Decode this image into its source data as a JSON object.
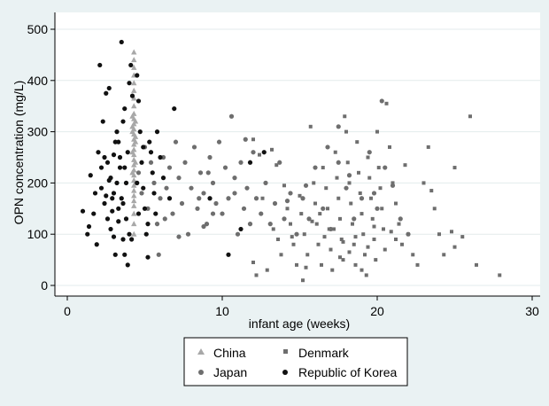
{
  "chart_data": {
    "type": "scatter",
    "xlabel": "infant age (weeks)",
    "ylabel": "OPN concentration (mg/L)",
    "xlim": [
      0,
      30
    ],
    "ylim": [
      0,
      500
    ],
    "x_ticks": [
      "0",
      "10",
      "20",
      "30"
    ],
    "y_ticks": [
      "0",
      "100",
      "200",
      "300",
      "400",
      "500"
    ],
    "grid": "horizontal",
    "legend_position": "bottom",
    "colors": {
      "background": "#eaf2f3",
      "plot_area": "#ffffff",
      "China": "#a8a8a8",
      "Denmark": "#6e6e6e",
      "Japan": "#6e6e6e",
      "Republic of Korea": "#111111"
    },
    "series": [
      {
        "name": "China",
        "marker": "triangle",
        "points": [
          [
            4.3,
            455
          ],
          [
            4.3,
            440
          ],
          [
            4.3,
            425
          ],
          [
            4.3,
            410
          ],
          [
            4.3,
            395
          ],
          [
            4.3,
            380
          ],
          [
            4.3,
            365
          ],
          [
            4.3,
            350
          ],
          [
            4.3,
            335
          ],
          [
            4.3,
            325
          ],
          [
            4.3,
            315
          ],
          [
            4.3,
            305
          ],
          [
            4.3,
            295
          ],
          [
            4.3,
            285
          ],
          [
            4.3,
            275
          ],
          [
            4.3,
            265
          ],
          [
            4.3,
            255
          ],
          [
            4.3,
            245
          ],
          [
            4.3,
            235
          ],
          [
            4.3,
            225
          ],
          [
            4.3,
            215
          ],
          [
            4.3,
            205
          ],
          [
            4.3,
            195
          ],
          [
            4.3,
            185
          ],
          [
            4.3,
            175
          ],
          [
            4.3,
            165
          ],
          [
            4.3,
            155
          ],
          [
            4.3,
            140
          ],
          [
            4.3,
            120
          ],
          [
            4.3,
            100
          ],
          [
            4.2,
            300
          ],
          [
            4.4,
            280
          ],
          [
            4.2,
            260
          ],
          [
            4.4,
            240
          ],
          [
            4.2,
            220
          ],
          [
            4.4,
            200
          ],
          [
            4.2,
            330
          ],
          [
            4.4,
            320
          ],
          [
            4.2,
            310
          ],
          [
            4.4,
            290
          ]
        ]
      },
      {
        "name": "Denmark",
        "marker": "square",
        "points": [
          [
            12.0,
            285
          ],
          [
            12.0,
            45
          ],
          [
            12.2,
            20
          ],
          [
            12.4,
            255
          ],
          [
            12.9,
            30
          ],
          [
            12.6,
            170
          ],
          [
            13.2,
            265
          ],
          [
            13.5,
            235
          ],
          [
            13.3,
            110
          ],
          [
            13.6,
            90
          ],
          [
            13.8,
            60
          ],
          [
            14.0,
            195
          ],
          [
            14.2,
            150
          ],
          [
            14.4,
            120
          ],
          [
            14.6,
            80
          ],
          [
            14.8,
            40
          ],
          [
            15.0,
            175
          ],
          [
            15.1,
            140
          ],
          [
            15.3,
            100
          ],
          [
            15.2,
            10
          ],
          [
            15.5,
            60
          ],
          [
            15.7,
            310
          ],
          [
            15.9,
            200
          ],
          [
            16.0,
            160
          ],
          [
            16.1,
            120
          ],
          [
            16.2,
            80
          ],
          [
            16.4,
            40
          ],
          [
            16.5,
            230
          ],
          [
            16.7,
            190
          ],
          [
            16.8,
            150
          ],
          [
            16.9,
            110
          ],
          [
            17.0,
            70
          ],
          [
            17.1,
            30
          ],
          [
            17.3,
            260
          ],
          [
            17.4,
            210
          ],
          [
            17.5,
            170
          ],
          [
            17.6,
            130
          ],
          [
            17.7,
            90
          ],
          [
            17.8,
            50
          ],
          [
            17.9,
            330
          ],
          [
            18.0,
            300
          ],
          [
            18.1,
            240
          ],
          [
            18.2,
            200
          ],
          [
            18.3,
            160
          ],
          [
            18.4,
            120
          ],
          [
            18.5,
            80
          ],
          [
            18.6,
            40
          ],
          [
            18.7,
            280
          ],
          [
            18.8,
            220
          ],
          [
            18.9,
            180
          ],
          [
            19.0,
            140
          ],
          [
            19.1,
            100
          ],
          [
            19.2,
            60
          ],
          [
            19.3,
            20
          ],
          [
            19.4,
            250
          ],
          [
            19.5,
            210
          ],
          [
            19.6,
            170
          ],
          [
            19.7,
            130
          ],
          [
            19.8,
            90
          ],
          [
            19.9,
            50
          ],
          [
            20.0,
            300
          ],
          [
            20.1,
            230
          ],
          [
            20.2,
            190
          ],
          [
            20.3,
            150
          ],
          [
            20.4,
            110
          ],
          [
            20.5,
            70
          ],
          [
            20.6,
            355
          ],
          [
            20.8,
            270
          ],
          [
            21.0,
            200
          ],
          [
            21.2,
            160
          ],
          [
            21.4,
            120
          ],
          [
            21.6,
            80
          ],
          [
            21.8,
            235
          ],
          [
            22.0,
            100
          ],
          [
            22.3,
            60
          ],
          [
            22.6,
            40
          ],
          [
            23.0,
            200
          ],
          [
            23.3,
            270
          ],
          [
            23.5,
            185
          ],
          [
            23.7,
            150
          ],
          [
            24.0,
            100
          ],
          [
            24.3,
            60
          ],
          [
            24.8,
            105
          ],
          [
            25.0,
            75
          ],
          [
            25.0,
            230
          ],
          [
            25.5,
            95
          ],
          [
            26.0,
            330
          ],
          [
            26.4,
            40
          ],
          [
            27.9,
            20
          ],
          [
            16.3,
            140
          ],
          [
            17.2,
            110
          ],
          [
            18.6,
            95
          ],
          [
            19.8,
            115
          ],
          [
            20.9,
            105
          ],
          [
            15.8,
            125
          ],
          [
            17.8,
            85
          ],
          [
            19.4,
            75
          ],
          [
            21.2,
            90
          ],
          [
            18.2,
            65
          ],
          [
            16.6,
            95
          ],
          [
            17.6,
            55
          ],
          [
            19.0,
            30
          ],
          [
            15.4,
            35
          ],
          [
            14.5,
            95
          ]
        ]
      },
      {
        "name": "Japan",
        "marker": "circle",
        "points": [
          [
            4.6,
            220
          ],
          [
            4.8,
            180
          ],
          [
            5.0,
            270
          ],
          [
            5.2,
            150
          ],
          [
            5.4,
            240
          ],
          [
            5.6,
            200
          ],
          [
            5.8,
            120
          ],
          [
            6.0,
            170
          ],
          [
            6.2,
            250
          ],
          [
            6.4,
            190
          ],
          [
            6.6,
            230
          ],
          [
            6.8,
            140
          ],
          [
            7.0,
            280
          ],
          [
            7.2,
            210
          ],
          [
            7.4,
            160
          ],
          [
            7.6,
            240
          ],
          [
            7.8,
            100
          ],
          [
            8.0,
            190
          ],
          [
            8.2,
            270
          ],
          [
            8.4,
            150
          ],
          [
            8.6,
            220
          ],
          [
            8.8,
            180
          ],
          [
            9.0,
            120
          ],
          [
            9.2,
            250
          ],
          [
            9.4,
            200
          ],
          [
            9.6,
            160
          ],
          [
            9.8,
            280
          ],
          [
            10.0,
            140
          ],
          [
            10.2,
            230
          ],
          [
            10.4,
            170
          ],
          [
            10.6,
            330
          ],
          [
            10.8,
            210
          ],
          [
            11.0,
            100
          ],
          [
            11.2,
            240
          ],
          [
            11.4,
            150
          ],
          [
            11.6,
            190
          ],
          [
            11.8,
            120
          ],
          [
            12.0,
            260
          ],
          [
            12.2,
            170
          ],
          [
            12.5,
            140
          ],
          [
            12.8,
            200
          ],
          [
            13.1,
            120
          ],
          [
            13.4,
            160
          ],
          [
            13.7,
            240
          ],
          [
            14.0,
            130
          ],
          [
            14.4,
            180
          ],
          [
            14.8,
            100
          ],
          [
            15.2,
            170
          ],
          [
            15.6,
            130
          ],
          [
            16.0,
            230
          ],
          [
            16.5,
            150
          ],
          [
            17.0,
            110
          ],
          [
            17.5,
            240
          ],
          [
            18.0,
            190
          ],
          [
            18.5,
            130
          ],
          [
            19.0,
            170
          ],
          [
            19.5,
            260
          ],
          [
            20.0,
            150
          ],
          [
            20.5,
            230
          ],
          [
            21.0,
            195
          ],
          [
            21.5,
            130
          ],
          [
            22.0,
            100
          ],
          [
            16.8,
            270
          ],
          [
            18.2,
            215
          ],
          [
            15.4,
            195
          ],
          [
            14.2,
            165
          ],
          [
            8.5,
            170
          ],
          [
            9.1,
            220
          ],
          [
            10.8,
            180
          ],
          [
            11.5,
            285
          ],
          [
            6.3,
            130
          ],
          [
            7.2,
            95
          ],
          [
            5.9,
            60
          ],
          [
            8.8,
            115
          ],
          [
            9.4,
            140
          ],
          [
            17.5,
            310
          ],
          [
            19.8,
            180
          ],
          [
            20.3,
            360
          ]
        ]
      },
      {
        "name": "Republic of Korea",
        "marker": "circle",
        "points": [
          [
            1.0,
            145
          ],
          [
            1.3,
            100
          ],
          [
            1.5,
            215
          ],
          [
            1.7,
            140
          ],
          [
            1.9,
            80
          ],
          [
            2.1,
            430
          ],
          [
            2.2,
            190
          ],
          [
            2.3,
            320
          ],
          [
            2.4,
            250
          ],
          [
            2.5,
            375
          ],
          [
            2.6,
            130
          ],
          [
            2.7,
            385
          ],
          [
            2.8,
            210
          ],
          [
            2.9,
            170
          ],
          [
            3.0,
            95
          ],
          [
            3.1,
            280
          ],
          [
            3.2,
            300
          ],
          [
            3.3,
            125
          ],
          [
            3.4,
            230
          ],
          [
            3.5,
            475
          ],
          [
            3.6,
            160
          ],
          [
            3.7,
            60
          ],
          [
            3.8,
            200
          ],
          [
            3.9,
            260
          ],
          [
            4.0,
            395
          ],
          [
            4.1,
            430
          ],
          [
            4.15,
            90
          ],
          [
            4.5,
            410
          ],
          [
            4.6,
            360
          ],
          [
            4.7,
            300
          ],
          [
            4.8,
            240
          ],
          [
            4.9,
            190
          ],
          [
            5.0,
            150
          ],
          [
            5.1,
            100
          ],
          [
            5.2,
            55
          ],
          [
            5.3,
            280
          ],
          [
            5.4,
            260
          ],
          [
            5.5,
            220
          ],
          [
            5.6,
            180
          ],
          [
            5.7,
            140
          ],
          [
            5.8,
            300
          ],
          [
            6.0,
            250
          ],
          [
            6.2,
            210
          ],
          [
            6.6,
            170
          ],
          [
            6.9,
            345
          ],
          [
            9.2,
            170
          ],
          [
            10.4,
            60
          ],
          [
            11.2,
            110
          ],
          [
            11.8,
            240
          ],
          [
            12.7,
            260
          ],
          [
            2.0,
            260
          ],
          [
            2.2,
            230
          ],
          [
            2.6,
            240
          ],
          [
            3.0,
            180
          ],
          [
            3.3,
            280
          ],
          [
            3.6,
            320
          ],
          [
            3.8,
            130
          ],
          [
            3.2,
            200
          ],
          [
            2.9,
            145
          ],
          [
            3.4,
            250
          ],
          [
            3.7,
            230
          ],
          [
            2.4,
            160
          ],
          [
            3.1,
            60
          ],
          [
            3.6,
            90
          ],
          [
            2.8,
            110
          ],
          [
            3.9,
            40
          ],
          [
            2.5,
            175
          ],
          [
            3.0,
            255
          ],
          [
            3.5,
            170
          ],
          [
            4.0,
            100
          ],
          [
            4.5,
            200
          ],
          [
            4.9,
            270
          ],
          [
            1.4,
            115
          ],
          [
            1.8,
            180
          ],
          [
            2.7,
            205
          ],
          [
            3.3,
            150
          ],
          [
            4.6,
            140
          ],
          [
            5.2,
            120
          ],
          [
            3.7,
            345
          ],
          [
            4.2,
            370
          ]
        ]
      }
    ]
  }
}
